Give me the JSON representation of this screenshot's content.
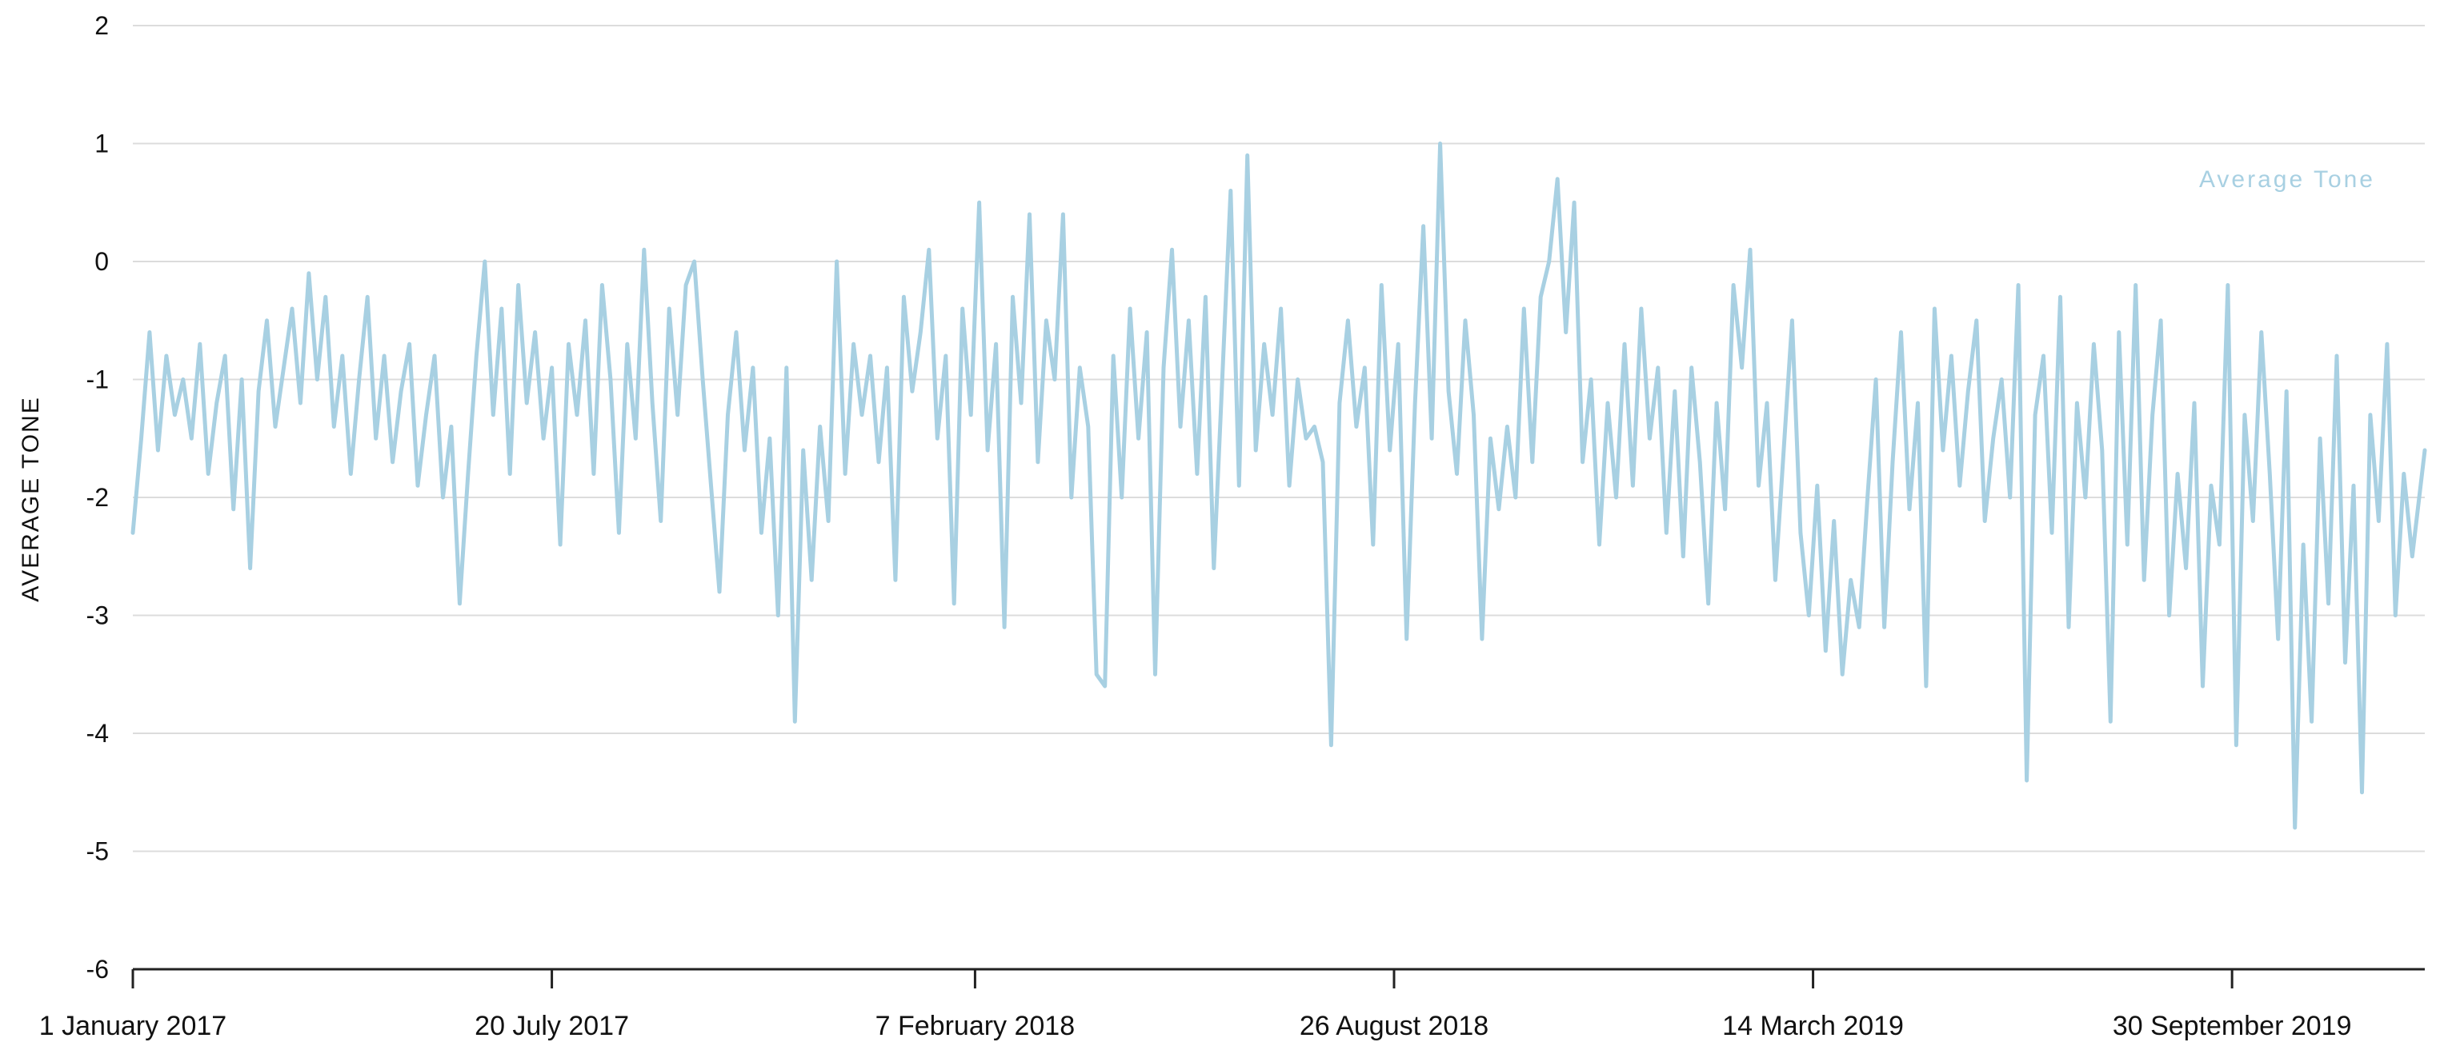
{
  "chart_data": {
    "type": "line",
    "title": "",
    "ylabel": "AVERAGE TONE",
    "xlabel": "",
    "ylim": [
      -6,
      2
    ],
    "yticks": [
      "2",
      "1",
      "0",
      "-1",
      "-2",
      "-3",
      "-4",
      "-5",
      "-6"
    ],
    "xlim": [
      "2017-01-01",
      "2019-12-31"
    ],
    "xticks": [
      {
        "date": "2017-01-01",
        "label": "1 January 2017"
      },
      {
        "date": "2017-07-20",
        "label": "20 July 2017"
      },
      {
        "date": "2018-02-07",
        "label": "7 February 2018"
      },
      {
        "date": "2018-08-26",
        "label": "26 August 2018"
      },
      {
        "date": "2019-03-14",
        "label": "14 March 2019"
      },
      {
        "date": "2019-09-30",
        "label": "30 September 2019"
      }
    ],
    "grid": true,
    "legend_position": "top-right",
    "color": "#a8d0e2",
    "series": [
      {
        "name": "Average Tone",
        "points": [
          [
            "2017-01-01",
            -2.3
          ],
          [
            "2017-01-05",
            -1.5
          ],
          [
            "2017-01-09",
            -0.6
          ],
          [
            "2017-01-13",
            -1.6
          ],
          [
            "2017-01-17",
            -0.8
          ],
          [
            "2017-01-21",
            -1.3
          ],
          [
            "2017-01-25",
            -1.0
          ],
          [
            "2017-01-29",
            -1.5
          ],
          [
            "2017-02-02",
            -0.7
          ],
          [
            "2017-02-06",
            -1.8
          ],
          [
            "2017-02-10",
            -1.2
          ],
          [
            "2017-02-14",
            -0.8
          ],
          [
            "2017-02-18",
            -2.1
          ],
          [
            "2017-02-22",
            -1.0
          ],
          [
            "2017-02-26",
            -2.6
          ],
          [
            "2017-03-02",
            -1.1
          ],
          [
            "2017-03-06",
            -0.5
          ],
          [
            "2017-03-10",
            -1.4
          ],
          [
            "2017-03-14",
            -0.9
          ],
          [
            "2017-03-18",
            -0.4
          ],
          [
            "2017-03-22",
            -1.2
          ],
          [
            "2017-03-26",
            -0.1
          ],
          [
            "2017-03-30",
            -1.0
          ],
          [
            "2017-04-03",
            -0.3
          ],
          [
            "2017-04-07",
            -1.4
          ],
          [
            "2017-04-11",
            -0.8
          ],
          [
            "2017-04-15",
            -1.8
          ],
          [
            "2017-04-19",
            -1.0
          ],
          [
            "2017-04-23",
            -0.3
          ],
          [
            "2017-04-27",
            -1.5
          ],
          [
            "2017-05-01",
            -0.8
          ],
          [
            "2017-05-05",
            -1.7
          ],
          [
            "2017-05-09",
            -1.1
          ],
          [
            "2017-05-13",
            -0.7
          ],
          [
            "2017-05-17",
            -1.9
          ],
          [
            "2017-05-21",
            -1.3
          ],
          [
            "2017-05-25",
            -0.8
          ],
          [
            "2017-05-29",
            -2.0
          ],
          [
            "2017-06-02",
            -1.4
          ],
          [
            "2017-06-06",
            -2.9
          ],
          [
            "2017-06-10",
            -1.8
          ],
          [
            "2017-06-14",
            -0.8
          ],
          [
            "2017-06-18",
            0.0
          ],
          [
            "2017-06-22",
            -1.3
          ],
          [
            "2017-06-26",
            -0.4
          ],
          [
            "2017-06-30",
            -1.8
          ],
          [
            "2017-07-04",
            -0.2
          ],
          [
            "2017-07-08",
            -1.2
          ],
          [
            "2017-07-12",
            -0.6
          ],
          [
            "2017-07-16",
            -1.5
          ],
          [
            "2017-07-20",
            -0.9
          ],
          [
            "2017-07-24",
            -2.4
          ],
          [
            "2017-07-28",
            -0.7
          ],
          [
            "2017-08-01",
            -1.3
          ],
          [
            "2017-08-05",
            -0.5
          ],
          [
            "2017-08-09",
            -1.8
          ],
          [
            "2017-08-13",
            -0.2
          ],
          [
            "2017-08-17",
            -1.0
          ],
          [
            "2017-08-21",
            -2.3
          ],
          [
            "2017-08-25",
            -0.7
          ],
          [
            "2017-08-29",
            -1.5
          ],
          [
            "2017-09-02",
            0.1
          ],
          [
            "2017-09-06",
            -1.2
          ],
          [
            "2017-09-10",
            -2.2
          ],
          [
            "2017-09-14",
            -0.4
          ],
          [
            "2017-09-18",
            -1.3
          ],
          [
            "2017-09-22",
            -0.2
          ],
          [
            "2017-09-26",
            0.0
          ],
          [
            "2017-09-30",
            -1.0
          ],
          [
            "2017-10-04",
            -1.9
          ],
          [
            "2017-10-08",
            -2.8
          ],
          [
            "2017-10-12",
            -1.3
          ],
          [
            "2017-10-16",
            -0.6
          ],
          [
            "2017-10-20",
            -1.6
          ],
          [
            "2017-10-24",
            -0.9
          ],
          [
            "2017-10-28",
            -2.3
          ],
          [
            "2017-11-01",
            -1.5
          ],
          [
            "2017-11-05",
            -3.0
          ],
          [
            "2017-11-09",
            -0.9
          ],
          [
            "2017-11-13",
            -3.9
          ],
          [
            "2017-11-17",
            -1.6
          ],
          [
            "2017-11-21",
            -2.7
          ],
          [
            "2017-11-25",
            -1.4
          ],
          [
            "2017-11-29",
            -2.2
          ],
          [
            "2017-12-03",
            0.0
          ],
          [
            "2017-12-07",
            -1.8
          ],
          [
            "2017-12-11",
            -0.7
          ],
          [
            "2017-12-15",
            -1.3
          ],
          [
            "2017-12-19",
            -0.8
          ],
          [
            "2017-12-23",
            -1.7
          ],
          [
            "2017-12-27",
            -0.9
          ],
          [
            "2017-12-31",
            -2.7
          ],
          [
            "2018-01-04",
            -0.3
          ],
          [
            "2018-01-08",
            -1.1
          ],
          [
            "2018-01-12",
            -0.6
          ],
          [
            "2018-01-16",
            0.1
          ],
          [
            "2018-01-20",
            -1.5
          ],
          [
            "2018-01-24",
            -0.8
          ],
          [
            "2018-01-28",
            -2.9
          ],
          [
            "2018-02-01",
            -0.4
          ],
          [
            "2018-02-05",
            -1.3
          ],
          [
            "2018-02-09",
            0.5
          ],
          [
            "2018-02-13",
            -1.6
          ],
          [
            "2018-02-17",
            -0.7
          ],
          [
            "2018-02-21",
            -3.1
          ],
          [
            "2018-02-25",
            -0.3
          ],
          [
            "2018-03-01",
            -1.2
          ],
          [
            "2018-03-05",
            0.4
          ],
          [
            "2018-03-09",
            -1.7
          ],
          [
            "2018-03-13",
            -0.5
          ],
          [
            "2018-03-17",
            -1.0
          ],
          [
            "2018-03-21",
            0.4
          ],
          [
            "2018-03-25",
            -2.0
          ],
          [
            "2018-03-29",
            -0.9
          ],
          [
            "2018-04-02",
            -1.4
          ],
          [
            "2018-04-06",
            -3.5
          ],
          [
            "2018-04-10",
            -3.6
          ],
          [
            "2018-04-14",
            -0.8
          ],
          [
            "2018-04-18",
            -2.0
          ],
          [
            "2018-04-22",
            -0.4
          ],
          [
            "2018-04-26",
            -1.5
          ],
          [
            "2018-04-30",
            -0.6
          ],
          [
            "2018-05-04",
            -3.5
          ],
          [
            "2018-05-08",
            -0.9
          ],
          [
            "2018-05-12",
            0.1
          ],
          [
            "2018-05-16",
            -1.4
          ],
          [
            "2018-05-20",
            -0.5
          ],
          [
            "2018-05-24",
            -1.8
          ],
          [
            "2018-05-28",
            -0.3
          ],
          [
            "2018-06-01",
            -2.6
          ],
          [
            "2018-06-05",
            -1.0
          ],
          [
            "2018-06-09",
            0.6
          ],
          [
            "2018-06-13",
            -1.9
          ],
          [
            "2018-06-17",
            0.9
          ],
          [
            "2018-06-21",
            -1.6
          ],
          [
            "2018-06-25",
            -0.7
          ],
          [
            "2018-06-29",
            -1.3
          ],
          [
            "2018-07-03",
            -0.4
          ],
          [
            "2018-07-07",
            -1.9
          ],
          [
            "2018-07-11",
            -1.0
          ],
          [
            "2018-07-15",
            -1.5
          ],
          [
            "2018-07-19",
            -1.4
          ],
          [
            "2018-07-23",
            -1.7
          ],
          [
            "2018-07-27",
            -4.1
          ],
          [
            "2018-07-31",
            -1.2
          ],
          [
            "2018-08-04",
            -0.5
          ],
          [
            "2018-08-08",
            -1.4
          ],
          [
            "2018-08-12",
            -0.9
          ],
          [
            "2018-08-16",
            -2.4
          ],
          [
            "2018-08-20",
            -0.2
          ],
          [
            "2018-08-24",
            -1.6
          ],
          [
            "2018-08-28",
            -0.7
          ],
          [
            "2018-09-01",
            -3.2
          ],
          [
            "2018-09-05",
            -1.2
          ],
          [
            "2018-09-09",
            0.3
          ],
          [
            "2018-09-13",
            -1.5
          ],
          [
            "2018-09-17",
            1.0
          ],
          [
            "2018-09-21",
            -1.1
          ],
          [
            "2018-09-25",
            -1.8
          ],
          [
            "2018-09-29",
            -0.5
          ],
          [
            "2018-10-03",
            -1.3
          ],
          [
            "2018-10-07",
            -3.2
          ],
          [
            "2018-10-11",
            -1.5
          ],
          [
            "2018-10-15",
            -2.1
          ],
          [
            "2018-10-19",
            -1.4
          ],
          [
            "2018-10-23",
            -2.0
          ],
          [
            "2018-10-27",
            -0.4
          ],
          [
            "2018-10-31",
            -1.7
          ],
          [
            "2018-11-04",
            -0.3
          ],
          [
            "2018-11-08",
            0.0
          ],
          [
            "2018-11-12",
            0.7
          ],
          [
            "2018-11-16",
            -0.6
          ],
          [
            "2018-11-20",
            0.5
          ],
          [
            "2018-11-24",
            -1.7
          ],
          [
            "2018-11-28",
            -1.0
          ],
          [
            "2018-12-02",
            -2.4
          ],
          [
            "2018-12-06",
            -1.2
          ],
          [
            "2018-12-10",
            -2.0
          ],
          [
            "2018-12-14",
            -0.7
          ],
          [
            "2018-12-18",
            -1.9
          ],
          [
            "2018-12-22",
            -0.4
          ],
          [
            "2018-12-26",
            -1.5
          ],
          [
            "2018-12-30",
            -0.9
          ],
          [
            "2019-01-03",
            -2.3
          ],
          [
            "2019-01-07",
            -1.1
          ],
          [
            "2019-01-11",
            -2.5
          ],
          [
            "2019-01-15",
            -0.9
          ],
          [
            "2019-01-19",
            -1.7
          ],
          [
            "2019-01-23",
            -2.9
          ],
          [
            "2019-01-27",
            -1.2
          ],
          [
            "2019-01-31",
            -2.1
          ],
          [
            "2019-02-04",
            -0.2
          ],
          [
            "2019-02-08",
            -0.9
          ],
          [
            "2019-02-12",
            0.1
          ],
          [
            "2019-02-16",
            -1.9
          ],
          [
            "2019-02-20",
            -1.2
          ],
          [
            "2019-02-24",
            -2.7
          ],
          [
            "2019-02-28",
            -1.6
          ],
          [
            "2019-03-04",
            -0.5
          ],
          [
            "2019-03-08",
            -2.3
          ],
          [
            "2019-03-12",
            -3.0
          ],
          [
            "2019-03-16",
            -1.9
          ],
          [
            "2019-03-20",
            -3.3
          ],
          [
            "2019-03-24",
            -2.2
          ],
          [
            "2019-03-28",
            -3.5
          ],
          [
            "2019-04-01",
            -2.7
          ],
          [
            "2019-04-05",
            -3.1
          ],
          [
            "2019-04-09",
            -2.0
          ],
          [
            "2019-04-13",
            -1.0
          ],
          [
            "2019-04-17",
            -3.1
          ],
          [
            "2019-04-21",
            -1.7
          ],
          [
            "2019-04-25",
            -0.6
          ],
          [
            "2019-04-29",
            -2.1
          ],
          [
            "2019-05-03",
            -1.2
          ],
          [
            "2019-05-07",
            -3.6
          ],
          [
            "2019-05-11",
            -0.4
          ],
          [
            "2019-05-15",
            -1.6
          ],
          [
            "2019-05-19",
            -0.8
          ],
          [
            "2019-05-23",
            -1.9
          ],
          [
            "2019-05-27",
            -1.1
          ],
          [
            "2019-05-31",
            -0.5
          ],
          [
            "2019-06-04",
            -2.2
          ],
          [
            "2019-06-08",
            -1.5
          ],
          [
            "2019-06-12",
            -1.0
          ],
          [
            "2019-06-16",
            -2.0
          ],
          [
            "2019-06-20",
            -0.2
          ],
          [
            "2019-06-24",
            -4.4
          ],
          [
            "2019-06-28",
            -1.3
          ],
          [
            "2019-07-02",
            -0.8
          ],
          [
            "2019-07-06",
            -2.3
          ],
          [
            "2019-07-10",
            -0.3
          ],
          [
            "2019-07-14",
            -3.1
          ],
          [
            "2019-07-18",
            -1.2
          ],
          [
            "2019-07-22",
            -2.0
          ],
          [
            "2019-07-26",
            -0.7
          ],
          [
            "2019-07-30",
            -1.6
          ],
          [
            "2019-08-03",
            -3.9
          ],
          [
            "2019-08-07",
            -0.6
          ],
          [
            "2019-08-11",
            -2.4
          ],
          [
            "2019-08-15",
            -0.2
          ],
          [
            "2019-08-19",
            -2.7
          ],
          [
            "2019-08-23",
            -1.3
          ],
          [
            "2019-08-27",
            -0.5
          ],
          [
            "2019-08-31",
            -3.0
          ],
          [
            "2019-09-04",
            -1.8
          ],
          [
            "2019-09-08",
            -2.6
          ],
          [
            "2019-09-12",
            -1.2
          ],
          [
            "2019-09-16",
            -3.6
          ],
          [
            "2019-09-20",
            -1.9
          ],
          [
            "2019-09-24",
            -2.4
          ],
          [
            "2019-09-28",
            -0.2
          ],
          [
            "2019-10-02",
            -4.1
          ],
          [
            "2019-10-06",
            -1.3
          ],
          [
            "2019-10-10",
            -2.2
          ],
          [
            "2019-10-14",
            -0.6
          ],
          [
            "2019-10-18",
            -1.8
          ],
          [
            "2019-10-22",
            -3.2
          ],
          [
            "2019-10-26",
            -1.1
          ],
          [
            "2019-10-30",
            -4.8
          ],
          [
            "2019-11-03",
            -2.4
          ],
          [
            "2019-11-07",
            -3.9
          ],
          [
            "2019-11-11",
            -1.5
          ],
          [
            "2019-11-15",
            -2.9
          ],
          [
            "2019-11-19",
            -0.8
          ],
          [
            "2019-11-23",
            -3.4
          ],
          [
            "2019-11-27",
            -1.9
          ],
          [
            "2019-12-01",
            -4.5
          ],
          [
            "2019-12-05",
            -1.3
          ],
          [
            "2019-12-09",
            -2.2
          ],
          [
            "2019-12-13",
            -0.7
          ],
          [
            "2019-12-17",
            -3.0
          ],
          [
            "2019-12-21",
            -1.8
          ],
          [
            "2019-12-25",
            -2.5
          ],
          [
            "2019-12-31",
            -1.6
          ]
        ]
      }
    ]
  }
}
